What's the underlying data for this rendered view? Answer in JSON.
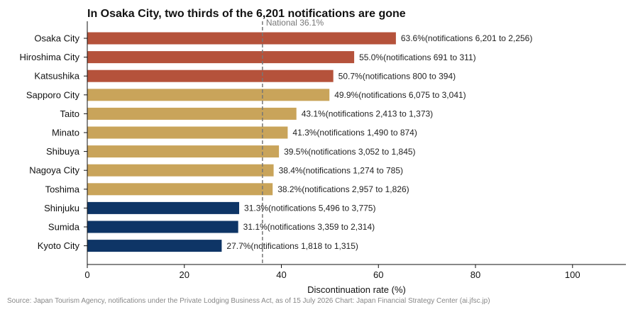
{
  "chart_data": {
    "type": "bar",
    "orientation": "horizontal",
    "title": "In Osaka City, two thirds of the 6,201 notifications are gone",
    "xlabel": "Discontinuation rate (%)",
    "ylabel": "",
    "xlim": [
      0,
      111
    ],
    "xticks": [
      "0",
      "20",
      "40",
      "60",
      "80",
      "100"
    ],
    "grid": false,
    "categories": [
      "Osaka City",
      "Hiroshima City",
      "Katsushika",
      "Sapporo City",
      "Taito",
      "Minato",
      "Shibuya",
      "Nagoya City",
      "Toshima",
      "Shinjuku",
      "Sumida",
      "Kyoto City"
    ],
    "values": [
      63.6,
      55.0,
      50.7,
      49.9,
      43.1,
      41.3,
      39.5,
      38.4,
      38.2,
      31.3,
      31.1,
      27.7
    ],
    "bar_labels": [
      "63.6%\u0003(notifications 6,201 to 2,256)",
      "55.0%\u0003(notifications 691 to 311)",
      "50.7%\u0003(notifications 800 to 394)",
      "49.9%\u0003(notifications 6,075 to 3,041)",
      "43.1%\u0003(notifications 2,413 to 1,373)",
      "41.3%\u0003(notifications 1,490 to 874)",
      "39.5%\u0003(notifications 3,052 to 1,845)",
      "38.4%\u0003(notifications 1,274 to 785)",
      "38.2%\u0003(notifications 2,957 to 1,826)",
      "31.3%\u0003(notifications 5,496 to 3,775)",
      "31.1%\u0003(notifications 3,359 to 2,314)",
      "27.7%\u0003(notifications 1,818 to 1,315)"
    ],
    "bar_colors": [
      "#b5523b",
      "#b5523b",
      "#b5523b",
      "#c9a45a",
      "#c9a45a",
      "#c9a45a",
      "#c9a45a",
      "#c9a45a",
      "#c9a45a",
      "#0e3566",
      "#0e3566",
      "#0e3566"
    ],
    "reference_line": {
      "value": 36.1,
      "label": "National 36.1%",
      "color": "#777777",
      "style": "dashed"
    }
  },
  "source": "Source: Japan Tourism Agency, notifications under the Private Lodging Business Act, as of 15 July 2026  Chart: Japan Financial Strategy Center (ai.jfsc.jp)"
}
